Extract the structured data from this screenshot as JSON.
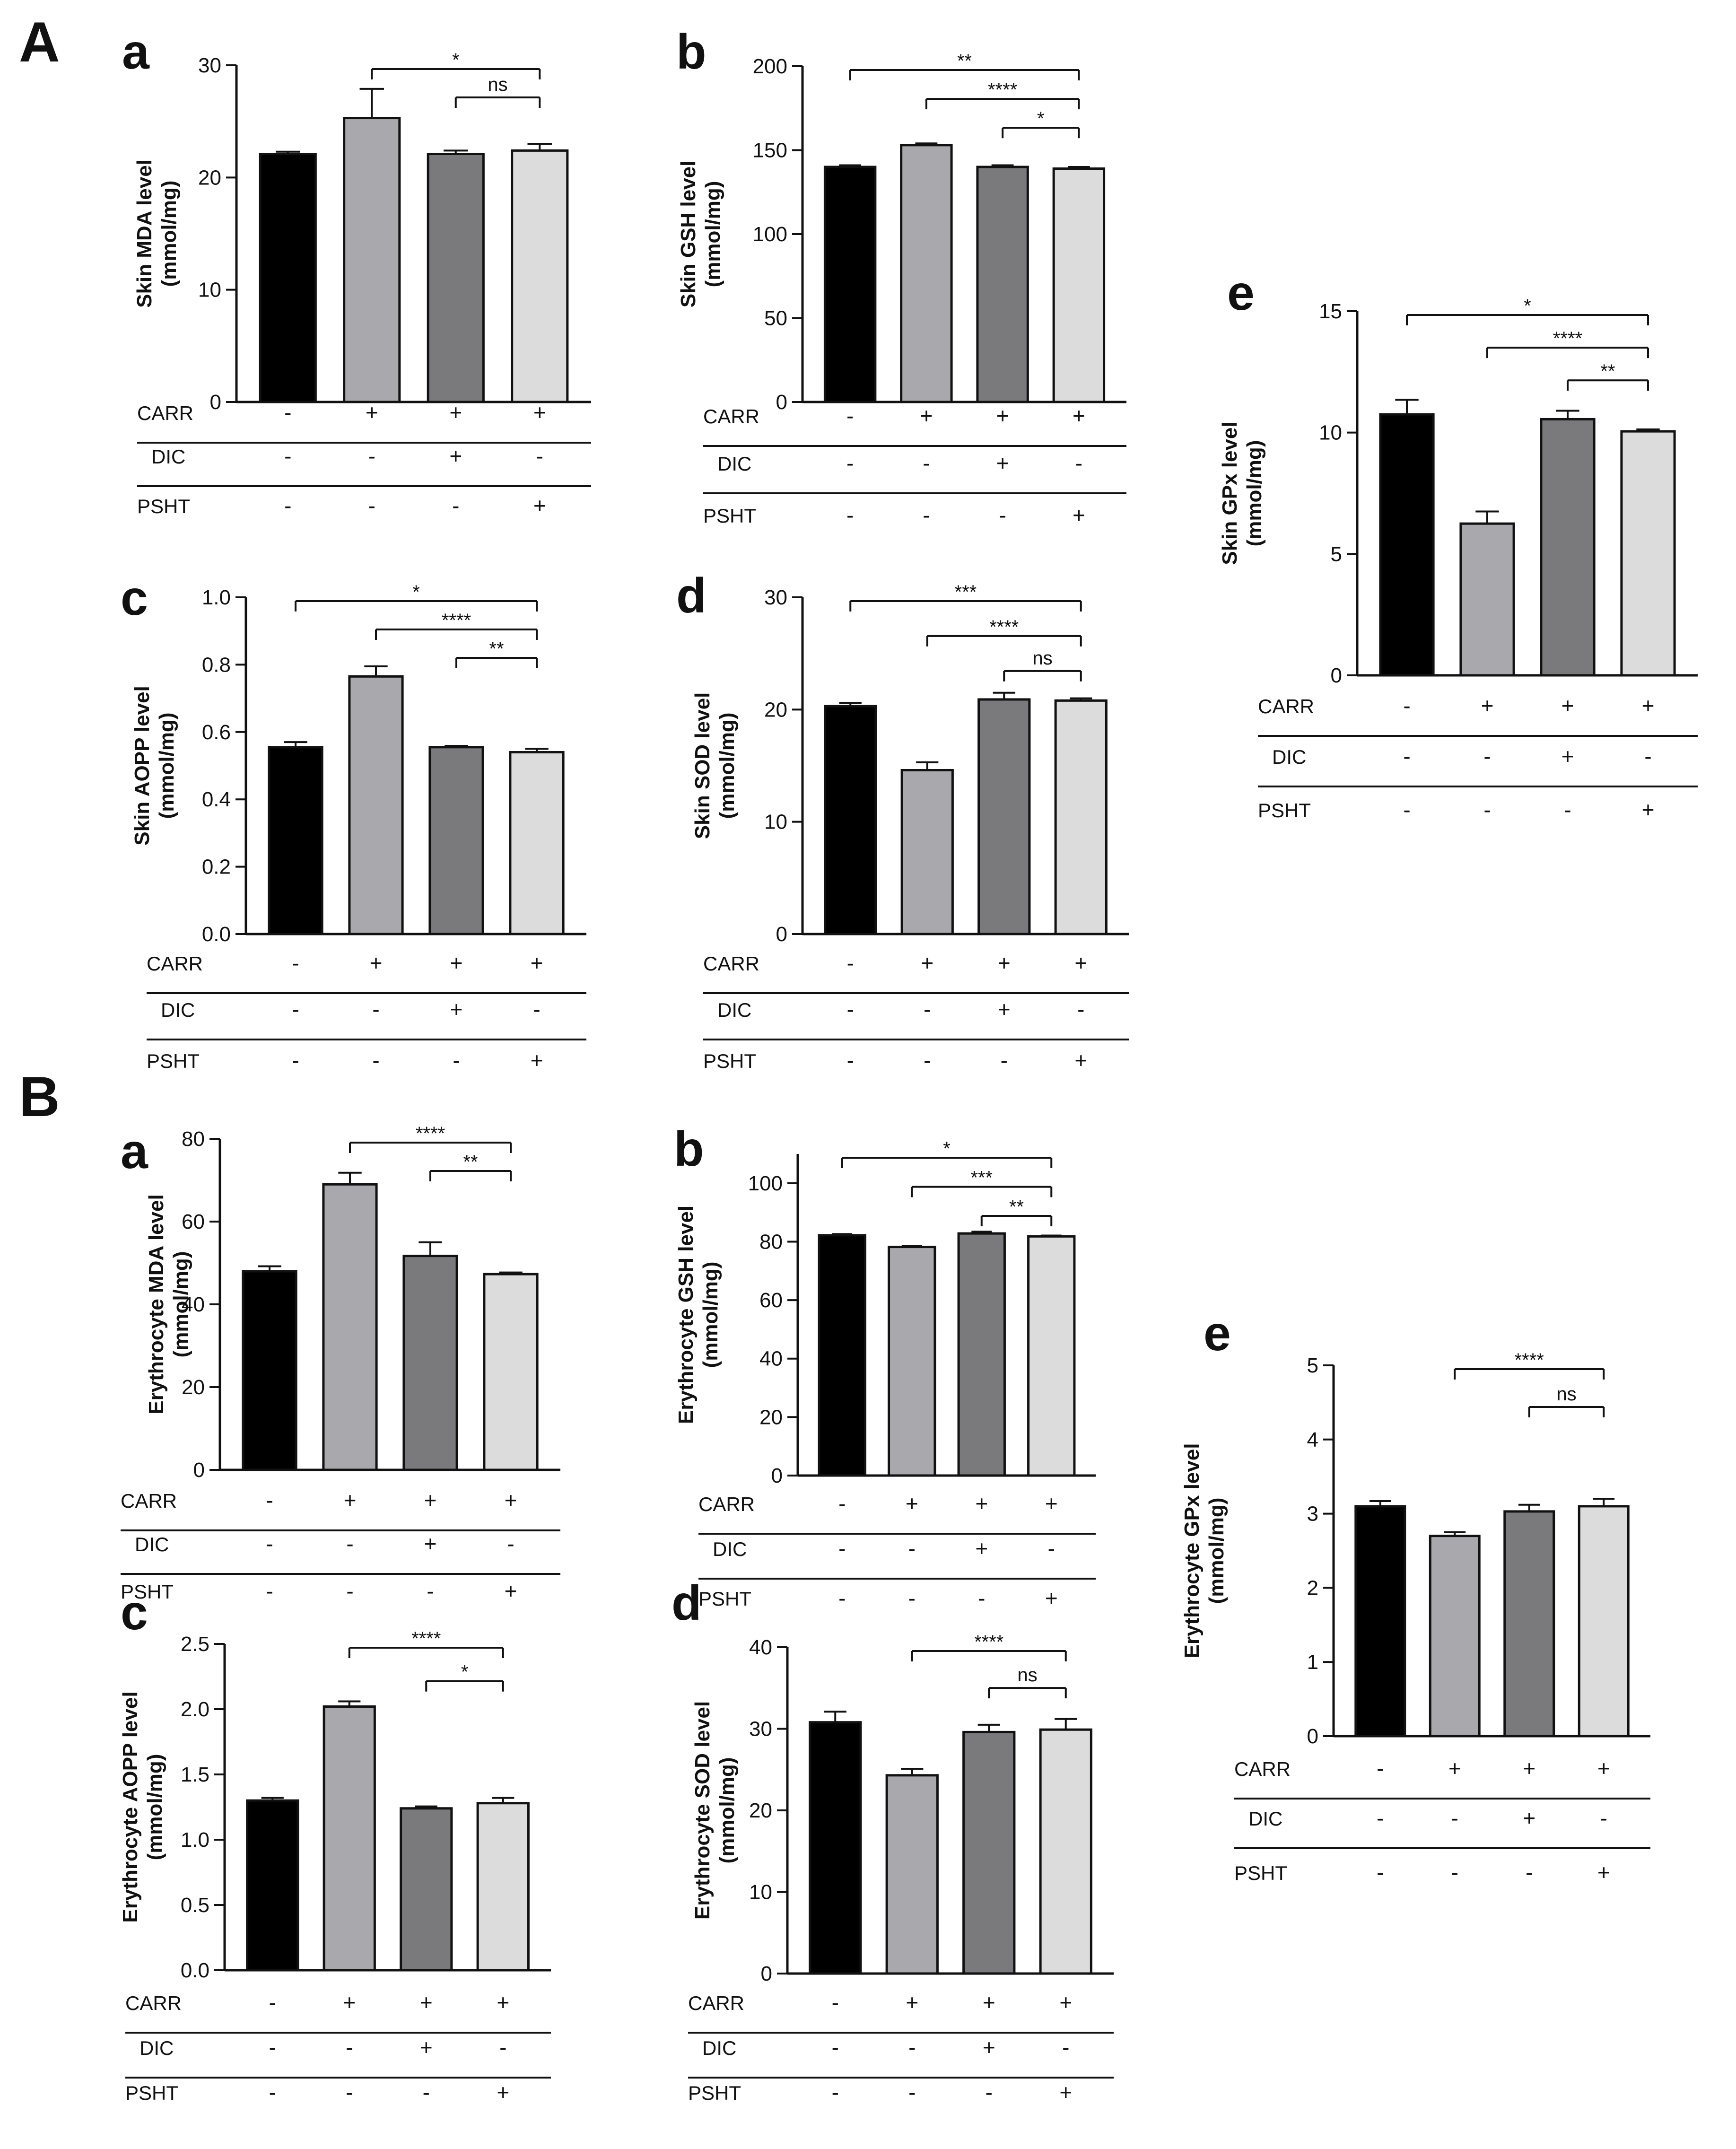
{
  "panels": {
    "A": "A",
    "B": "B"
  },
  "treatments": {
    "rows": [
      "CARR",
      "DIC",
      "PSHT"
    ],
    "signs": [
      [
        "-",
        "+",
        "+",
        "+"
      ],
      [
        "-",
        "-",
        "+",
        "-"
      ],
      [
        "-",
        "-",
        "-",
        "+"
      ]
    ]
  },
  "colors": {
    "bars": [
      "#000000",
      "#a9a9ad",
      "#7a7a7c",
      "#dcdcdc"
    ],
    "axis": "#111111"
  },
  "chart_data": [
    {
      "id": "A-a",
      "panel": "A",
      "letter": "a",
      "type": "bar",
      "ylabel_line1": "Skin MDA level",
      "ylabel_line2": "(mmol/mg)",
      "ylim": [
        0,
        30
      ],
      "yticks": [
        0,
        10,
        20,
        30
      ],
      "ytick_labels": [
        "0",
        "10",
        "20",
        "30"
      ],
      "values": [
        22.1,
        25.3,
        22.1,
        22.4
      ],
      "errors": [
        0.2,
        2.6,
        0.3,
        0.6
      ],
      "comparisons": [
        {
          "from": 1,
          "to": 3,
          "label": "*"
        },
        {
          "from": 2,
          "to": 3,
          "label": "ns"
        }
      ]
    },
    {
      "id": "A-b",
      "panel": "A",
      "letter": "b",
      "type": "bar",
      "ylabel_line1": "Skin GSH level",
      "ylabel_line2": "(mmol/mg)",
      "ylim": [
        0,
        200
      ],
      "yticks": [
        0,
        50,
        100,
        150,
        200
      ],
      "ytick_labels": [
        "0",
        "50",
        "100",
        "150",
        "200"
      ],
      "values": [
        140,
        153,
        140,
        139
      ],
      "errors": [
        1,
        1,
        1,
        1
      ],
      "comparisons": [
        {
          "from": 0,
          "to": 3,
          "label": "**"
        },
        {
          "from": 1,
          "to": 3,
          "label": "****"
        },
        {
          "from": 2,
          "to": 3,
          "label": "*"
        }
      ]
    },
    {
      "id": "A-c",
      "panel": "A",
      "letter": "c",
      "type": "bar",
      "ylabel_line1": "Skin AOPP level",
      "ylabel_line2": "(mmol/mg)",
      "ylim": [
        0,
        1.0
      ],
      "yticks": [
        0,
        0.2,
        0.4,
        0.6,
        0.8,
        1.0
      ],
      "ytick_labels": [
        "0.0",
        "0.2",
        "0.4",
        "0.6",
        "0.8",
        "1.0"
      ],
      "values": [
        0.555,
        0.765,
        0.555,
        0.54
      ],
      "errors": [
        0.015,
        0.03,
        0.004,
        0.01
      ],
      "comparisons": [
        {
          "from": 0,
          "to": 3,
          "label": "*"
        },
        {
          "from": 1,
          "to": 3,
          "label": "****"
        },
        {
          "from": 2,
          "to": 3,
          "label": "**"
        }
      ]
    },
    {
      "id": "A-d",
      "panel": "A",
      "letter": "d",
      "type": "bar",
      "ylabel_line1": "Skin SOD level",
      "ylabel_line2": "(mmol/mg)",
      "ylim": [
        0,
        30
      ],
      "yticks": [
        0,
        10,
        20,
        30
      ],
      "ytick_labels": [
        "0",
        "10",
        "20",
        "30"
      ],
      "values": [
        20.3,
        14.6,
        20.9,
        20.8
      ],
      "errors": [
        0.3,
        0.7,
        0.6,
        0.2
      ],
      "comparisons": [
        {
          "from": 0,
          "to": 3,
          "label": "***"
        },
        {
          "from": 1,
          "to": 3,
          "label": "****"
        },
        {
          "from": 2,
          "to": 3,
          "label": "ns"
        }
      ]
    },
    {
      "id": "A-e",
      "panel": "A",
      "letter": "e",
      "type": "bar",
      "ylabel_line1": "Skin GPx level",
      "ylabel_line2": "(mmol/mg)",
      "ylim": [
        0,
        15
      ],
      "yticks": [
        0,
        5,
        10,
        15
      ],
      "ytick_labels": [
        "0",
        "5",
        "10",
        "15"
      ],
      "values": [
        10.75,
        6.25,
        10.55,
        10.05
      ],
      "errors": [
        0.6,
        0.5,
        0.35,
        0.08
      ],
      "comparisons": [
        {
          "from": 0,
          "to": 3,
          "label": "*"
        },
        {
          "from": 1,
          "to": 3,
          "label": "****"
        },
        {
          "from": 2,
          "to": 3,
          "label": "**"
        }
      ]
    },
    {
      "id": "B-a",
      "panel": "B",
      "letter": "a",
      "type": "bar",
      "ylabel_line1": "Erythrocyte MDA level",
      "ylabel_line2": "(mmol/mg)",
      "ylim": [
        0,
        80
      ],
      "yticks": [
        0,
        20,
        40,
        60,
        80
      ],
      "ytick_labels": [
        "0",
        "20",
        "40",
        "60",
        "80"
      ],
      "values": [
        48,
        69,
        51.7,
        47.3
      ],
      "errors": [
        1.2,
        2.8,
        3.3,
        0.4
      ],
      "comparisons": [
        {
          "from": 1,
          "to": 3,
          "label": "****"
        },
        {
          "from": 2,
          "to": 3,
          "label": "**"
        }
      ]
    },
    {
      "id": "B-b",
      "panel": "B",
      "letter": "b",
      "type": "bar",
      "ylabel_line1": "Erythrocyte GSH level",
      "ylabel_line2": "(mmol/mg)",
      "ylim": [
        0,
        110
      ],
      "yticks": [
        0,
        20,
        40,
        60,
        80,
        100
      ],
      "ytick_labels": [
        "0",
        "20",
        "40",
        "60",
        "80",
        "100"
      ],
      "values": [
        82.2,
        78.2,
        82.8,
        81.8
      ],
      "errors": [
        0.4,
        0.4,
        0.6,
        0.3
      ],
      "comparisons": [
        {
          "from": 0,
          "to": 3,
          "label": "*"
        },
        {
          "from": 1,
          "to": 3,
          "label": "***"
        },
        {
          "from": 2,
          "to": 3,
          "label": "**"
        }
      ]
    },
    {
      "id": "B-c",
      "panel": "B",
      "letter": "c",
      "type": "bar",
      "ylabel_line1": "Erythrocyte AOPP level",
      "ylabel_line2": "(mmol/mg)",
      "ylim": [
        0,
        2.5
      ],
      "yticks": [
        0,
        0.5,
        1.0,
        1.5,
        2.0,
        2.5
      ],
      "ytick_labels": [
        "0.0",
        "0.5",
        "1.0",
        "1.5",
        "2.0",
        "2.5"
      ],
      "values": [
        1.3,
        2.02,
        1.24,
        1.28
      ],
      "errors": [
        0.02,
        0.04,
        0.015,
        0.04
      ],
      "comparisons": [
        {
          "from": 1,
          "to": 3,
          "label": "****"
        },
        {
          "from": 2,
          "to": 3,
          "label": "*"
        }
      ]
    },
    {
      "id": "B-d",
      "panel": "B",
      "letter": "d",
      "type": "bar",
      "ylabel_line1": "Erythrocyte SOD level",
      "ylabel_line2": "(mmol/mg)",
      "ylim": [
        0,
        40
      ],
      "yticks": [
        0,
        10,
        20,
        30,
        40
      ],
      "ytick_labels": [
        "0",
        "10",
        "20",
        "30",
        "40"
      ],
      "values": [
        30.8,
        24.3,
        29.6,
        29.9
      ],
      "errors": [
        1.3,
        0.8,
        0.9,
        1.3
      ],
      "comparisons": [
        {
          "from": 1,
          "to": 3,
          "label": "****"
        },
        {
          "from": 2,
          "to": 3,
          "label": "ns"
        }
      ]
    },
    {
      "id": "B-e",
      "panel": "B",
      "letter": "e",
      "type": "bar",
      "ylabel_line1": "Erythrocyte GPx level",
      "ylabel_line2": "(mmol/mg)",
      "ylim": [
        0,
        5
      ],
      "yticks": [
        0,
        1,
        2,
        3,
        4,
        5
      ],
      "ytick_labels": [
        "0",
        "1",
        "2",
        "3",
        "4",
        "5"
      ],
      "values": [
        3.1,
        2.7,
        3.03,
        3.1
      ],
      "errors": [
        0.07,
        0.05,
        0.09,
        0.1
      ],
      "comparisons": [
        {
          "from": 1,
          "to": 3,
          "label": "****"
        },
        {
          "from": 2,
          "to": 3,
          "label": "ns"
        }
      ]
    }
  ]
}
